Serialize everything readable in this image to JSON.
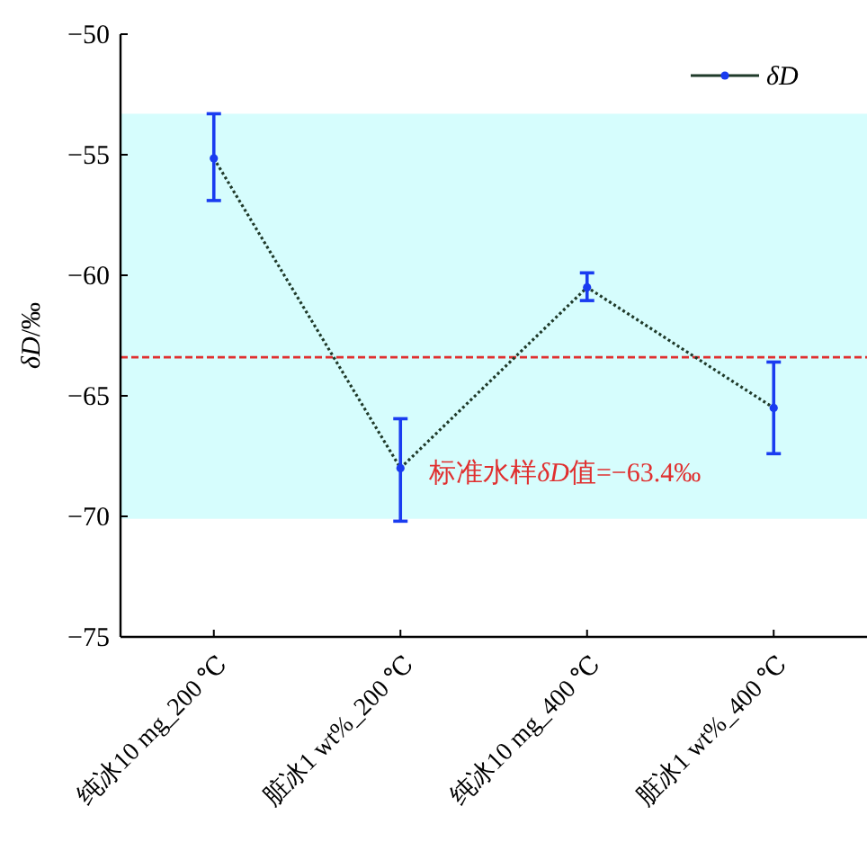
{
  "chart_data": {
    "type": "line",
    "ylabel": "δD/‰",
    "categories": [
      "纯冰10 mg_200 ℃",
      "脏冰1 wt%_200 ℃",
      "纯冰10 mg_400 ℃",
      "脏冰1 wt%_400 ℃"
    ],
    "series": [
      {
        "name": "δD",
        "color": "#1f3a2a",
        "values": [
          -55.15,
          -68.0,
          -60.5,
          -65.5
        ],
        "errors": [
          [
            -56.9,
            -53.3
          ],
          [
            -70.2,
            -65.95
          ],
          [
            -61.05,
            -59.9
          ],
          [
            -67.4,
            -63.6
          ]
        ]
      }
    ],
    "ylim": [
      -75,
      -50
    ],
    "yticks": [
      {
        "value": -75,
        "label": "−75"
      },
      {
        "value": -70,
        "label": "−70"
      },
      {
        "value": -65,
        "label": "−65"
      },
      {
        "value": -60,
        "label": "−60"
      },
      {
        "value": -55,
        "label": "−55"
      },
      {
        "value": -50,
        "label": "−50"
      }
    ],
    "bands": [
      {
        "axis": "y",
        "from": -70.1,
        "to": -53.3,
        "color": "#d6fdfd"
      }
    ],
    "ref_lines": [
      {
        "axis": "y",
        "value": -63.4,
        "label": "标准水样δD值=−63.4‰",
        "color": "#e03030",
        "line_style": "dashed"
      }
    ],
    "marker": "circle",
    "line_style": "dotted",
    "legend": "top right",
    "grid": false
  }
}
